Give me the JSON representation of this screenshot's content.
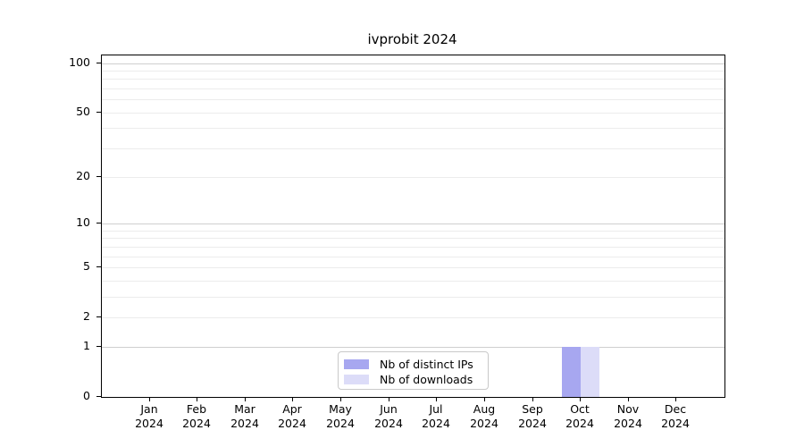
{
  "chart_data": {
    "type": "bar",
    "title": "ivprobit 2024",
    "categories": [
      "Jan",
      "Feb",
      "Mar",
      "Apr",
      "May",
      "Jun",
      "Jul",
      "Aug",
      "Sep",
      "Oct",
      "Nov",
      "Dec"
    ],
    "x_tick_second_line": "2024",
    "series": [
      {
        "name": "Nb of distinct IPs",
        "color": "#a7a7f0",
        "values": [
          0,
          0,
          0,
          0,
          0,
          0,
          0,
          0,
          0,
          1,
          0,
          0
        ]
      },
      {
        "name": "Nb of downloads",
        "color": "#dcdcf8",
        "values": [
          0,
          0,
          0,
          0,
          0,
          0,
          0,
          0,
          0,
          1,
          0,
          0
        ]
      }
    ],
    "y_axis": {
      "scale": "log1p",
      "ylim": [
        0,
        100
      ],
      "ticks": [
        0,
        1,
        2,
        5,
        10,
        20,
        50,
        100
      ],
      "major_gridlines": [
        1,
        10,
        100
      ],
      "minor_gridlines": [
        2,
        3,
        4,
        5,
        6,
        7,
        8,
        9,
        20,
        30,
        40,
        50,
        60,
        70,
        80,
        90
      ]
    },
    "legend": {
      "position": "lower center"
    },
    "colors": {
      "major_grid": "#cfcfcf",
      "minor_grid": "#ececec",
      "spine": "#000000"
    }
  }
}
